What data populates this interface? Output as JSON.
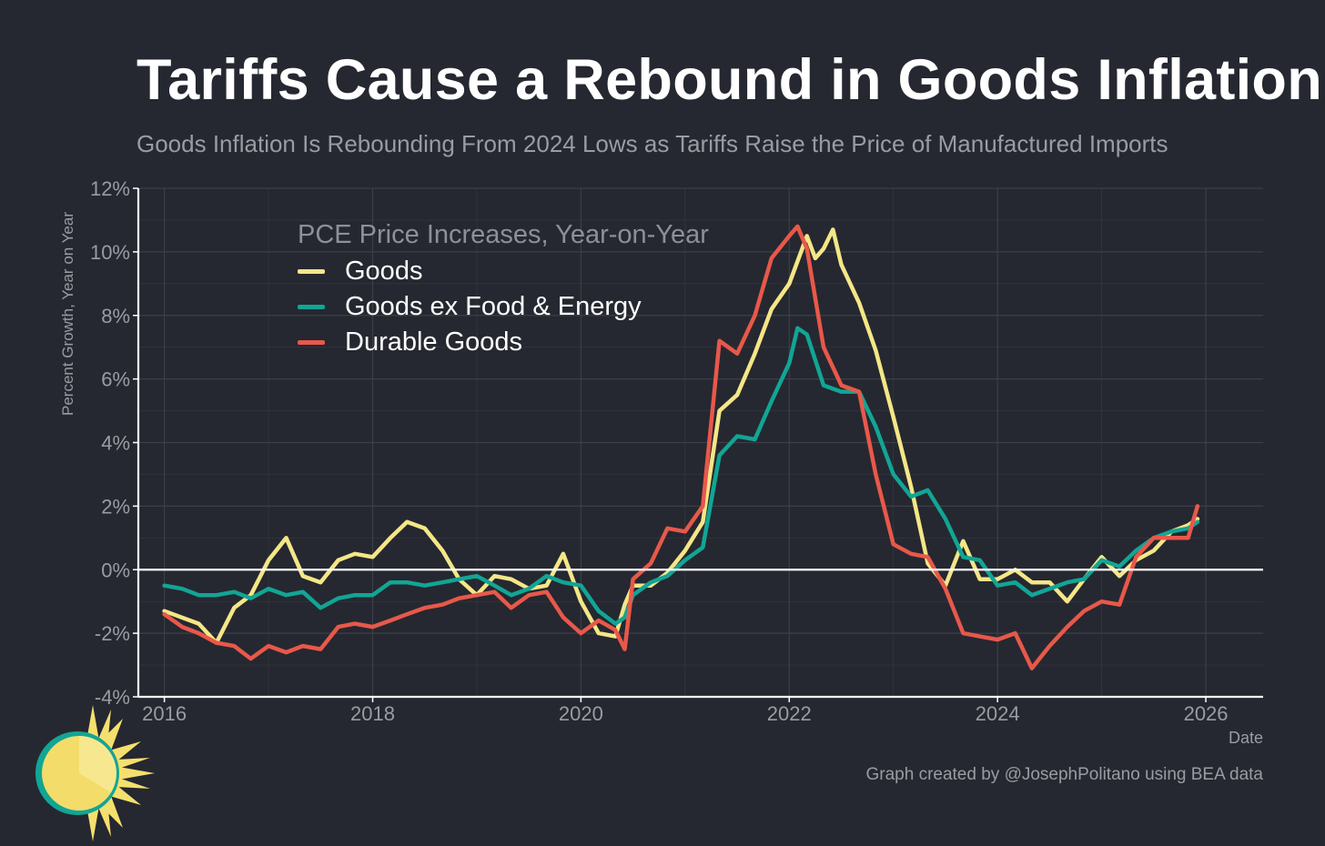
{
  "title": "Tariffs Cause a Rebound in Goods Inflation",
  "subtitle": "Goods Inflation Is Rebounding From 2024 Lows as Tariffs Raise the Price of Manufactured Imports",
  "credit": "Graph created by @JosephPolitano using BEA data",
  "logo_icon": "sun-logo-icon",
  "colors": {
    "background": "#252830",
    "grid": "#3c3f47",
    "axis": "#ffffff",
    "text_muted": "#9a9ca2",
    "goods": "#f5e687",
    "core_goods": "#12a595",
    "durable_goods": "#e8584a"
  },
  "chart_data": {
    "type": "line",
    "title": "Tariffs Cause a Rebound in Goods Inflation",
    "subtitle": "Goods Inflation Is Rebounding From 2024 Lows as Tariffs Raise the Price of Manufactured Imports",
    "xlabel": "Date",
    "ylabel": "Percent Growth, Year on Year",
    "legend_title": "PCE Price Increases, Year-on-Year",
    "legend_position": "top-left",
    "grid": true,
    "xlim": [
      2015.75,
      2026.55
    ],
    "ylim": [
      -4,
      12
    ],
    "x_ticks": [
      2016,
      2018,
      2020,
      2022,
      2024,
      2026
    ],
    "x_tick_labels": [
      "2016",
      "2018",
      "2020",
      "2022",
      "2024",
      "2026"
    ],
    "y_ticks": [
      -4,
      -2,
      0,
      2,
      4,
      6,
      8,
      10,
      12
    ],
    "y_tick_labels": [
      "-4%",
      "-2%",
      "0%",
      "2%",
      "4%",
      "6%",
      "8%",
      "10%",
      "12%"
    ],
    "series": [
      {
        "name": "Goods",
        "color": "#f5e687",
        "x": [
          2016.0,
          2016.33,
          2016.5,
          2016.67,
          2016.83,
          2017.0,
          2017.17,
          2017.33,
          2017.5,
          2017.67,
          2017.83,
          2018.0,
          2018.17,
          2018.33,
          2018.5,
          2018.67,
          2018.83,
          2019.0,
          2019.17,
          2019.33,
          2019.5,
          2019.67,
          2019.83,
          2020.0,
          2020.17,
          2020.33,
          2020.42,
          2020.5,
          2020.67,
          2020.83,
          2021.0,
          2021.17,
          2021.33,
          2021.5,
          2021.67,
          2021.83,
          2022.0,
          2022.17,
          2022.25,
          2022.33,
          2022.42,
          2022.5,
          2022.67,
          2022.83,
          2023.0,
          2023.17,
          2023.33,
          2023.5,
          2023.67,
          2023.83,
          2024.0,
          2024.17,
          2024.33,
          2024.5,
          2024.67,
          2024.83,
          2025.0,
          2025.17,
          2025.33,
          2025.5,
          2025.67,
          2025.83,
          2025.92
        ],
        "values": [
          -1.3,
          -1.7,
          -2.3,
          -1.2,
          -0.8,
          0.3,
          1.0,
          -0.2,
          -0.4,
          0.3,
          0.5,
          0.4,
          1.0,
          1.5,
          1.3,
          0.6,
          -0.3,
          -0.8,
          -0.2,
          -0.3,
          -0.6,
          -0.5,
          0.5,
          -1.0,
          -2.0,
          -2.1,
          -1.1,
          -0.5,
          -0.5,
          -0.1,
          0.6,
          1.5,
          5.0,
          5.5,
          6.8,
          8.2,
          9.0,
          10.5,
          9.8,
          10.1,
          10.7,
          9.6,
          8.4,
          6.9,
          4.8,
          2.6,
          0.2,
          -0.5,
          0.9,
          -0.3,
          -0.3,
          0.0,
          -0.4,
          -0.4,
          -1.0,
          -0.3,
          0.4,
          -0.2,
          0.3,
          0.6,
          1.2,
          1.4,
          1.6
        ]
      },
      {
        "name": "Goods ex Food & Energy",
        "color": "#12a595",
        "x": [
          2016.0,
          2016.17,
          2016.33,
          2016.5,
          2016.67,
          2016.83,
          2017.0,
          2017.17,
          2017.33,
          2017.5,
          2017.67,
          2017.83,
          2018.0,
          2018.17,
          2018.33,
          2018.5,
          2018.67,
          2018.83,
          2019.0,
          2019.17,
          2019.33,
          2019.5,
          2019.67,
          2019.83,
          2020.0,
          2020.17,
          2020.33,
          2020.42,
          2020.5,
          2020.67,
          2020.83,
          2021.0,
          2021.17,
          2021.33,
          2021.5,
          2021.67,
          2021.83,
          2022.0,
          2022.08,
          2022.17,
          2022.33,
          2022.5,
          2022.67,
          2022.83,
          2023.0,
          2023.17,
          2023.33,
          2023.5,
          2023.67,
          2023.83,
          2024.0,
          2024.17,
          2024.33,
          2024.5,
          2024.67,
          2024.83,
          2025.0,
          2025.17,
          2025.33,
          2025.5,
          2025.67,
          2025.83,
          2025.92
        ],
        "values": [
          -0.5,
          -0.6,
          -0.8,
          -0.8,
          -0.7,
          -0.9,
          -0.6,
          -0.8,
          -0.7,
          -1.2,
          -0.9,
          -0.8,
          -0.8,
          -0.4,
          -0.4,
          -0.5,
          -0.4,
          -0.3,
          -0.2,
          -0.5,
          -0.8,
          -0.6,
          -0.2,
          -0.4,
          -0.5,
          -1.3,
          -1.7,
          -1.5,
          -0.8,
          -0.4,
          -0.2,
          0.3,
          0.7,
          3.6,
          4.2,
          4.1,
          5.3,
          6.5,
          7.6,
          7.4,
          5.8,
          5.6,
          5.6,
          4.5,
          3.0,
          2.3,
          2.5,
          1.6,
          0.4,
          0.3,
          -0.5,
          -0.4,
          -0.8,
          -0.6,
          -0.4,
          -0.3,
          0.3,
          0.1,
          0.6,
          1.0,
          1.2,
          1.3,
          1.5
        ]
      },
      {
        "name": "Durable Goods",
        "color": "#e8584a",
        "x": [
          2016.0,
          2016.17,
          2016.33,
          2016.5,
          2016.67,
          2016.83,
          2017.0,
          2017.17,
          2017.33,
          2017.5,
          2017.67,
          2017.83,
          2018.0,
          2018.17,
          2018.33,
          2018.5,
          2018.67,
          2018.83,
          2019.0,
          2019.17,
          2019.33,
          2019.5,
          2019.67,
          2019.83,
          2020.0,
          2020.17,
          2020.33,
          2020.42,
          2020.5,
          2020.67,
          2020.83,
          2021.0,
          2021.17,
          2021.33,
          2021.5,
          2021.67,
          2021.83,
          2022.0,
          2022.08,
          2022.17,
          2022.33,
          2022.5,
          2022.67,
          2022.83,
          2023.0,
          2023.17,
          2023.33,
          2023.5,
          2023.67,
          2023.83,
          2024.0,
          2024.17,
          2024.33,
          2024.5,
          2024.67,
          2024.83,
          2025.0,
          2025.17,
          2025.33,
          2025.5,
          2025.67,
          2025.83,
          2025.92
        ],
        "values": [
          -1.4,
          -1.8,
          -2.0,
          -2.3,
          -2.4,
          -2.8,
          -2.4,
          -2.6,
          -2.4,
          -2.5,
          -1.8,
          -1.7,
          -1.8,
          -1.6,
          -1.4,
          -1.2,
          -1.1,
          -0.9,
          -0.8,
          -0.7,
          -1.2,
          -0.8,
          -0.7,
          -1.5,
          -2.0,
          -1.6,
          -1.9,
          -2.5,
          -0.3,
          0.2,
          1.3,
          1.2,
          2.0,
          7.2,
          6.8,
          8.0,
          9.8,
          10.5,
          10.8,
          10.1,
          7.0,
          5.8,
          5.6,
          3.0,
          0.8,
          0.5,
          0.4,
          -0.6,
          -2.0,
          -2.1,
          -2.2,
          -2.0,
          -3.1,
          -2.4,
          -1.8,
          -1.3,
          -1.0,
          -1.1,
          0.4,
          1.0,
          1.0,
          1.0,
          2.0
        ]
      }
    ]
  }
}
